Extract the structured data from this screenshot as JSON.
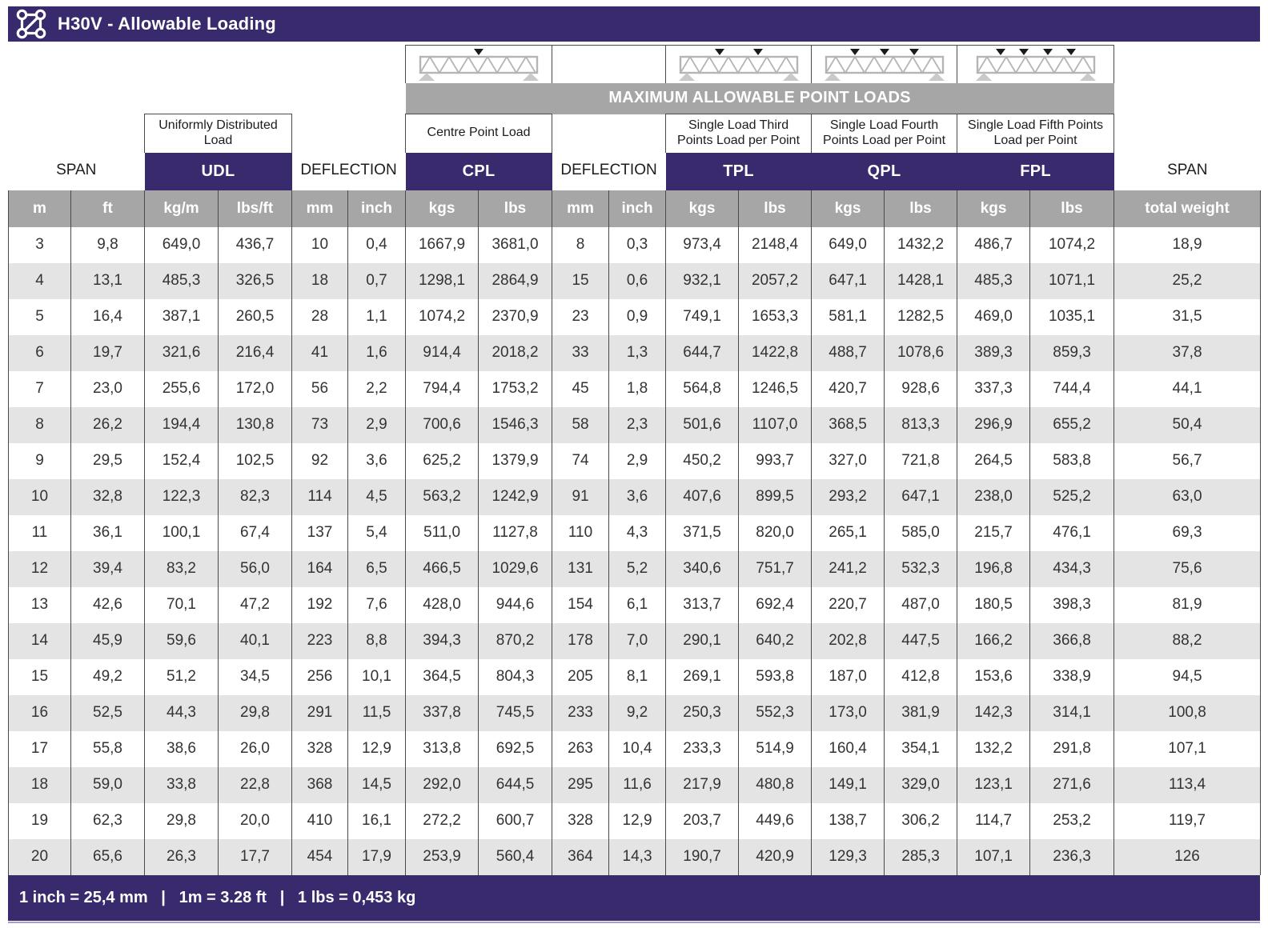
{
  "title_bar": {
    "title": "H30V - Allowable Loading"
  },
  "banner": "MAXIMUM ALLOWABLE POINT LOADS",
  "groups": {
    "span_left": "SPAN",
    "udl": {
      "label": "Uniformly Distributed Load",
      "abbr": "UDL"
    },
    "deflection1": "DEFLECTION",
    "cpl": {
      "label": "Centre Point Load",
      "abbr": "CPL"
    },
    "deflection2": "DEFLECTION",
    "tpl": {
      "label": "Single Load Third Points Load per Point",
      "abbr": "TPL"
    },
    "qpl": {
      "label": "Single Load Fourth Points Load per Point",
      "abbr": "QPL"
    },
    "fpl": {
      "label": "Single Load Fifth Points Load per Point",
      "abbr": "FPL"
    },
    "span_right": "SPAN"
  },
  "units": [
    "m",
    "ft",
    "kg/m",
    "lbs/ft",
    "mm",
    "inch",
    "kgs",
    "lbs",
    "mm",
    "inch",
    "kgs",
    "lbs",
    "kgs",
    "lbs",
    "kgs",
    "lbs",
    "total weight"
  ],
  "rows": [
    [
      "3",
      "9,8",
      "649,0",
      "436,7",
      "10",
      "0,4",
      "1667,9",
      "3681,0",
      "8",
      "0,3",
      "973,4",
      "2148,4",
      "649,0",
      "1432,2",
      "486,7",
      "1074,2",
      "18,9"
    ],
    [
      "4",
      "13,1",
      "485,3",
      "326,5",
      "18",
      "0,7",
      "1298,1",
      "2864,9",
      "15",
      "0,6",
      "932,1",
      "2057,2",
      "647,1",
      "1428,1",
      "485,3",
      "1071,1",
      "25,2"
    ],
    [
      "5",
      "16,4",
      "387,1",
      "260,5",
      "28",
      "1,1",
      "1074,2",
      "2370,9",
      "23",
      "0,9",
      "749,1",
      "1653,3",
      "581,1",
      "1282,5",
      "469,0",
      "1035,1",
      "31,5"
    ],
    [
      "6",
      "19,7",
      "321,6",
      "216,4",
      "41",
      "1,6",
      "914,4",
      "2018,2",
      "33",
      "1,3",
      "644,7",
      "1422,8",
      "488,7",
      "1078,6",
      "389,3",
      "859,3",
      "37,8"
    ],
    [
      "7",
      "23,0",
      "255,6",
      "172,0",
      "56",
      "2,2",
      "794,4",
      "1753,2",
      "45",
      "1,8",
      "564,8",
      "1246,5",
      "420,7",
      "928,6",
      "337,3",
      "744,4",
      "44,1"
    ],
    [
      "8",
      "26,2",
      "194,4",
      "130,8",
      "73",
      "2,9",
      "700,6",
      "1546,3",
      "58",
      "2,3",
      "501,6",
      "1107,0",
      "368,5",
      "813,3",
      "296,9",
      "655,2",
      "50,4"
    ],
    [
      "9",
      "29,5",
      "152,4",
      "102,5",
      "92",
      "3,6",
      "625,2",
      "1379,9",
      "74",
      "2,9",
      "450,2",
      "993,7",
      "327,0",
      "721,8",
      "264,5",
      "583,8",
      "56,7"
    ],
    [
      "10",
      "32,8",
      "122,3",
      "82,3",
      "114",
      "4,5",
      "563,2",
      "1242,9",
      "91",
      "3,6",
      "407,6",
      "899,5",
      "293,2",
      "647,1",
      "238,0",
      "525,2",
      "63,0"
    ],
    [
      "11",
      "36,1",
      "100,1",
      "67,4",
      "137",
      "5,4",
      "511,0",
      "1127,8",
      "110",
      "4,3",
      "371,5",
      "820,0",
      "265,1",
      "585,0",
      "215,7",
      "476,1",
      "69,3"
    ],
    [
      "12",
      "39,4",
      "83,2",
      "56,0",
      "164",
      "6,5",
      "466,5",
      "1029,6",
      "131",
      "5,2",
      "340,6",
      "751,7",
      "241,2",
      "532,3",
      "196,8",
      "434,3",
      "75,6"
    ],
    [
      "13",
      "42,6",
      "70,1",
      "47,2",
      "192",
      "7,6",
      "428,0",
      "944,6",
      "154",
      "6,1",
      "313,7",
      "692,4",
      "220,7",
      "487,0",
      "180,5",
      "398,3",
      "81,9"
    ],
    [
      "14",
      "45,9",
      "59,6",
      "40,1",
      "223",
      "8,8",
      "394,3",
      "870,2",
      "178",
      "7,0",
      "290,1",
      "640,2",
      "202,8",
      "447,5",
      "166,2",
      "366,8",
      "88,2"
    ],
    [
      "15",
      "49,2",
      "51,2",
      "34,5",
      "256",
      "10,1",
      "364,5",
      "804,3",
      "205",
      "8,1",
      "269,1",
      "593,8",
      "187,0",
      "412,8",
      "153,6",
      "338,9",
      "94,5"
    ],
    [
      "16",
      "52,5",
      "44,3",
      "29,8",
      "291",
      "11,5",
      "337,8",
      "745,5",
      "233",
      "9,2",
      "250,3",
      "552,3",
      "173,0",
      "381,9",
      "142,3",
      "314,1",
      "100,8"
    ],
    [
      "17",
      "55,8",
      "38,6",
      "26,0",
      "328",
      "12,9",
      "313,8",
      "692,5",
      "263",
      "10,4",
      "233,3",
      "514,9",
      "160,4",
      "354,1",
      "132,2",
      "291,8",
      "107,1"
    ],
    [
      "18",
      "59,0",
      "33,8",
      "22,8",
      "368",
      "14,5",
      "292,0",
      "644,5",
      "295",
      "11,6",
      "217,9",
      "480,8",
      "149,1",
      "329,0",
      "123,1",
      "271,6",
      "113,4"
    ],
    [
      "19",
      "62,3",
      "29,8",
      "20,0",
      "410",
      "16,1",
      "272,2",
      "600,7",
      "328",
      "12,9",
      "203,7",
      "449,6",
      "138,7",
      "306,2",
      "114,7",
      "253,2",
      "119,7"
    ],
    [
      "20",
      "65,6",
      "26,3",
      "17,7",
      "454",
      "17,9",
      "253,9",
      "560,4",
      "364",
      "14,3",
      "190,7",
      "420,9",
      "129,3",
      "285,3",
      "107,1",
      "236,3",
      "126"
    ]
  ],
  "footer": {
    "text": "1 inch = 25,4 mm   |   1m = 3.28 ft   |   1 lbs = 0,453 kg"
  },
  "colors": {
    "accent_purple": "#382a6d",
    "header_gray": "#a6a6a6",
    "row_stripe": "#e4e4e4",
    "grid_line": "#4a4a4a"
  }
}
